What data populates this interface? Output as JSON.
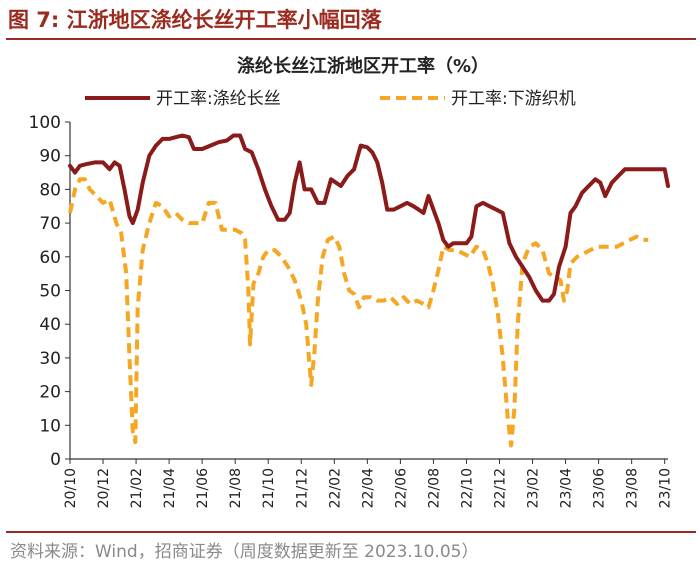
{
  "figure": {
    "title": "图 7:  江浙地区涤纶长丝开工率小幅回落",
    "source": "资料来源：Wind，招商证券（周度数据更新至 2023.10.05）"
  },
  "colors": {
    "accent": "#9b2a1f",
    "series_filament": "#8b1a1a",
    "series_downstream": "#f5a623",
    "source_text": "#8a8a8a"
  },
  "chart_data": {
    "type": "line",
    "title": "涤纶长丝江浙地区开工率（%）",
    "xlabel": "",
    "ylabel": "",
    "xlim": [
      0,
      36.2
    ],
    "ylim": [
      0,
      100
    ],
    "y_ticks": [
      0,
      10,
      20,
      30,
      40,
      50,
      60,
      70,
      80,
      90,
      100
    ],
    "x_tick_labels": [
      "20/10",
      "20/12",
      "21/02",
      "21/04",
      "21/06",
      "21/08",
      "21/10",
      "21/12",
      "22/02",
      "22/04",
      "22/06",
      "22/08",
      "22/10",
      "22/12",
      "23/02",
      "23/04",
      "23/06",
      "23/08",
      "23/10"
    ],
    "x_tick_positions": [
      0,
      2,
      4,
      6,
      8,
      10,
      12,
      14,
      16,
      18,
      20,
      22,
      24,
      26,
      28,
      30,
      32,
      34,
      36
    ],
    "grid": false,
    "legend_position": "top",
    "series": [
      {
        "name": "开工率:涤纶长丝",
        "style": "solid",
        "points": [
          [
            0,
            87
          ],
          [
            0.3,
            85
          ],
          [
            0.6,
            87
          ],
          [
            1,
            87.5
          ],
          [
            1.5,
            88
          ],
          [
            2,
            88
          ],
          [
            2.4,
            86
          ],
          [
            2.7,
            88
          ],
          [
            3.0,
            87
          ],
          [
            3.3,
            80
          ],
          [
            3.6,
            72
          ],
          [
            3.8,
            70
          ],
          [
            4.1,
            74
          ],
          [
            4.4,
            82
          ],
          [
            4.8,
            90
          ],
          [
            5.2,
            93
          ],
          [
            5.6,
            95
          ],
          [
            6,
            95
          ],
          [
            6.4,
            95.5
          ],
          [
            6.8,
            96
          ],
          [
            7.2,
            95.5
          ],
          [
            7.5,
            92
          ],
          [
            8,
            92
          ],
          [
            8.5,
            93
          ],
          [
            9,
            94
          ],
          [
            9.5,
            94.5
          ],
          [
            9.9,
            96
          ],
          [
            10.3,
            96
          ],
          [
            10.6,
            92
          ],
          [
            11,
            91
          ],
          [
            11.4,
            86
          ],
          [
            11.8,
            80
          ],
          [
            12.2,
            75
          ],
          [
            12.6,
            71
          ],
          [
            13,
            71
          ],
          [
            13.3,
            73
          ],
          [
            13.6,
            82
          ],
          [
            13.9,
            88
          ],
          [
            14.2,
            80
          ],
          [
            14.6,
            80
          ],
          [
            15,
            76
          ],
          [
            15.4,
            76
          ],
          [
            15.8,
            83
          ],
          [
            16.1,
            82
          ],
          [
            16.4,
            81
          ],
          [
            16.8,
            84
          ],
          [
            17.2,
            86
          ],
          [
            17.6,
            93
          ],
          [
            18,
            92.5
          ],
          [
            18.3,
            91
          ],
          [
            18.6,
            88
          ],
          [
            18.9,
            82
          ],
          [
            19.2,
            74
          ],
          [
            19.6,
            74
          ],
          [
            20,
            75
          ],
          [
            20.4,
            76
          ],
          [
            20.8,
            75
          ],
          [
            21.1,
            74
          ],
          [
            21.4,
            73
          ],
          [
            21.7,
            78
          ],
          [
            22,
            74
          ],
          [
            22.3,
            70
          ],
          [
            22.6,
            65
          ],
          [
            22.9,
            63
          ],
          [
            23.2,
            64
          ],
          [
            23.6,
            64
          ],
          [
            24,
            64
          ],
          [
            24.3,
            66
          ],
          [
            24.6,
            75
          ],
          [
            25,
            76
          ],
          [
            25.4,
            75
          ],
          [
            25.8,
            74
          ],
          [
            26.2,
            73
          ],
          [
            26.6,
            64
          ],
          [
            27,
            60
          ],
          [
            27.4,
            57
          ],
          [
            27.8,
            54
          ],
          [
            28.2,
            50
          ],
          [
            28.6,
            47
          ],
          [
            29,
            47
          ],
          [
            29.3,
            49
          ],
          [
            29.6,
            57
          ],
          [
            30,
            63
          ],
          [
            30.3,
            73
          ],
          [
            30.6,
            75
          ],
          [
            31,
            79
          ],
          [
            31.4,
            81
          ],
          [
            31.8,
            83
          ],
          [
            32.1,
            82
          ],
          [
            32.4,
            78
          ],
          [
            32.8,
            82
          ],
          [
            33.2,
            84
          ],
          [
            33.6,
            86
          ],
          [
            34,
            86
          ],
          [
            34.4,
            86
          ],
          [
            34.8,
            86
          ],
          [
            35.2,
            86
          ],
          [
            35.6,
            86
          ],
          [
            36,
            86
          ],
          [
            36.2,
            81
          ]
        ]
      },
      {
        "name": "开工率:下游织机",
        "style": "dashed",
        "points": [
          [
            0,
            73
          ],
          [
            0.3,
            80
          ],
          [
            0.6,
            83
          ],
          [
            0.9,
            83
          ],
          [
            1.2,
            80
          ],
          [
            1.6,
            78
          ],
          [
            2,
            76
          ],
          [
            2.4,
            77
          ],
          [
            2.8,
            70
          ],
          [
            3.1,
            67
          ],
          [
            3.4,
            55
          ],
          [
            3.6,
            30
          ],
          [
            3.8,
            8
          ],
          [
            3.95,
            5
          ],
          [
            4.1,
            45
          ],
          [
            4.4,
            62
          ],
          [
            4.8,
            70
          ],
          [
            5.2,
            76
          ],
          [
            5.6,
            75
          ],
          [
            6,
            72
          ],
          [
            6.4,
            73
          ],
          [
            6.8,
            71
          ],
          [
            7.2,
            70
          ],
          [
            7.6,
            70
          ],
          [
            8,
            70
          ],
          [
            8.4,
            76
          ],
          [
            8.8,
            76
          ],
          [
            9.2,
            68
          ],
          [
            9.6,
            68
          ],
          [
            10,
            68
          ],
          [
            10.4,
            67
          ],
          [
            10.6,
            65
          ],
          [
            10.8,
            50
          ],
          [
            10.9,
            34
          ],
          [
            11.1,
            52
          ],
          [
            11.4,
            55
          ],
          [
            11.7,
            60
          ],
          [
            12,
            62
          ],
          [
            12.4,
            62
          ],
          [
            12.8,
            60
          ],
          [
            13.2,
            57
          ],
          [
            13.6,
            53
          ],
          [
            14,
            47
          ],
          [
            14.3,
            40
          ],
          [
            14.5,
            28
          ],
          [
            14.6,
            22
          ],
          [
            14.8,
            32
          ],
          [
            15,
            47
          ],
          [
            15.3,
            60
          ],
          [
            15.6,
            65
          ],
          [
            16,
            66
          ],
          [
            16.3,
            63
          ],
          [
            16.6,
            55
          ],
          [
            16.9,
            50
          ],
          [
            17.2,
            49
          ],
          [
            17.5,
            45
          ],
          [
            17.8,
            48
          ],
          [
            18.2,
            48
          ],
          [
            18.6,
            47
          ],
          [
            19,
            47
          ],
          [
            19.4,
            48
          ],
          [
            19.8,
            46
          ],
          [
            20.2,
            48
          ],
          [
            20.6,
            46
          ],
          [
            21,
            47
          ],
          [
            21.4,
            46
          ],
          [
            21.7,
            45
          ],
          [
            22,
            50
          ],
          [
            22.3,
            56
          ],
          [
            22.6,
            63
          ],
          [
            23,
            62
          ],
          [
            23.4,
            62
          ],
          [
            23.8,
            61
          ],
          [
            24.2,
            60
          ],
          [
            24.6,
            63
          ],
          [
            25,
            62
          ],
          [
            25.3,
            58
          ],
          [
            25.6,
            52
          ],
          [
            25.9,
            43
          ],
          [
            26.2,
            30
          ],
          [
            26.5,
            12
          ],
          [
            26.7,
            4
          ],
          [
            26.9,
            15
          ],
          [
            27.1,
            40
          ],
          [
            27.4,
            58
          ],
          [
            27.8,
            63
          ],
          [
            28.2,
            64
          ],
          [
            28.6,
            62
          ],
          [
            29,
            55
          ],
          [
            29.4,
            54
          ],
          [
            29.7,
            53
          ],
          [
            29.9,
            47
          ],
          [
            30.1,
            50
          ],
          [
            30.3,
            58
          ],
          [
            30.7,
            60
          ],
          [
            31.1,
            61
          ],
          [
            31.5,
            62
          ],
          [
            31.9,
            63
          ],
          [
            32.3,
            63
          ],
          [
            32.7,
            63
          ],
          [
            33.1,
            63
          ],
          [
            33.5,
            64
          ],
          [
            33.9,
            65
          ],
          [
            34.3,
            66
          ],
          [
            34.7,
            65
          ],
          [
            35,
            65
          ]
        ]
      }
    ]
  }
}
